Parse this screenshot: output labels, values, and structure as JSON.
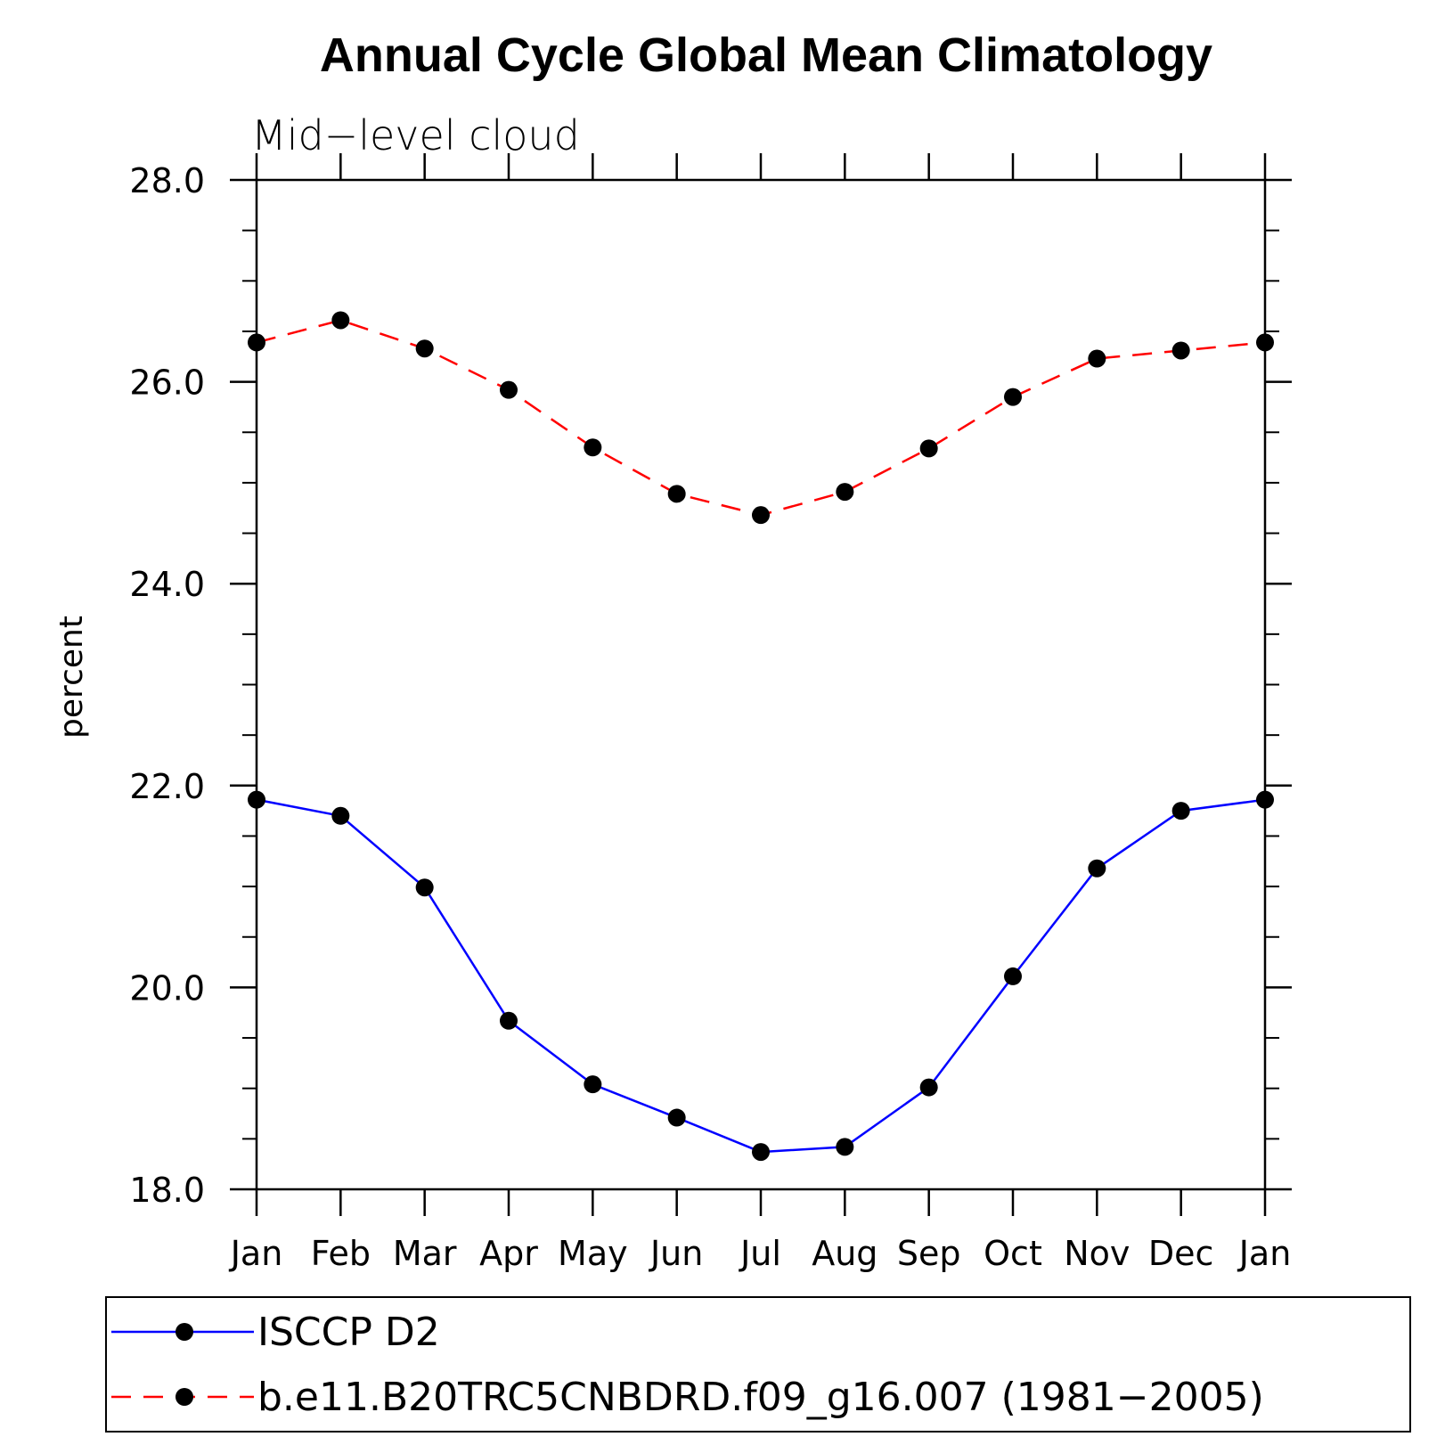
{
  "chart_data": {
    "type": "line",
    "title": "Annual Cycle Global Mean Climatology",
    "subtitle": "Mid−level cloud",
    "ylabel": "percent",
    "xlabel": "",
    "categories": [
      "Jan",
      "Feb",
      "Mar",
      "Apr",
      "May",
      "Jun",
      "Jul",
      "Aug",
      "Sep",
      "Oct",
      "Nov",
      "Dec",
      "Jan"
    ],
    "ylim": [
      18.0,
      28.0
    ],
    "yticks": [
      "18.0",
      "20.0",
      "22.0",
      "24.0",
      "26.0",
      "28.0"
    ],
    "yticks_values": [
      18,
      20,
      22,
      24,
      26,
      28
    ],
    "minor_step": 0.5,
    "grid": false,
    "legend_position": "bottom",
    "series": [
      {
        "name": "ISCCP D2",
        "color": "#0000ff",
        "dash": "solid",
        "values": [
          21.86,
          21.7,
          20.99,
          19.67,
          19.04,
          18.71,
          18.37,
          18.42,
          19.01,
          20.11,
          21.18,
          21.75,
          21.86
        ]
      },
      {
        "name": "b.e11.B20TRC5CNBDRD.f09_g16.007 (1981−2005)",
        "color": "#ff0000",
        "dash": "dashed",
        "values": [
          26.39,
          26.61,
          26.33,
          25.92,
          25.35,
          24.89,
          24.68,
          24.91,
          25.34,
          25.85,
          26.23,
          26.31,
          26.39
        ]
      }
    ]
  }
}
